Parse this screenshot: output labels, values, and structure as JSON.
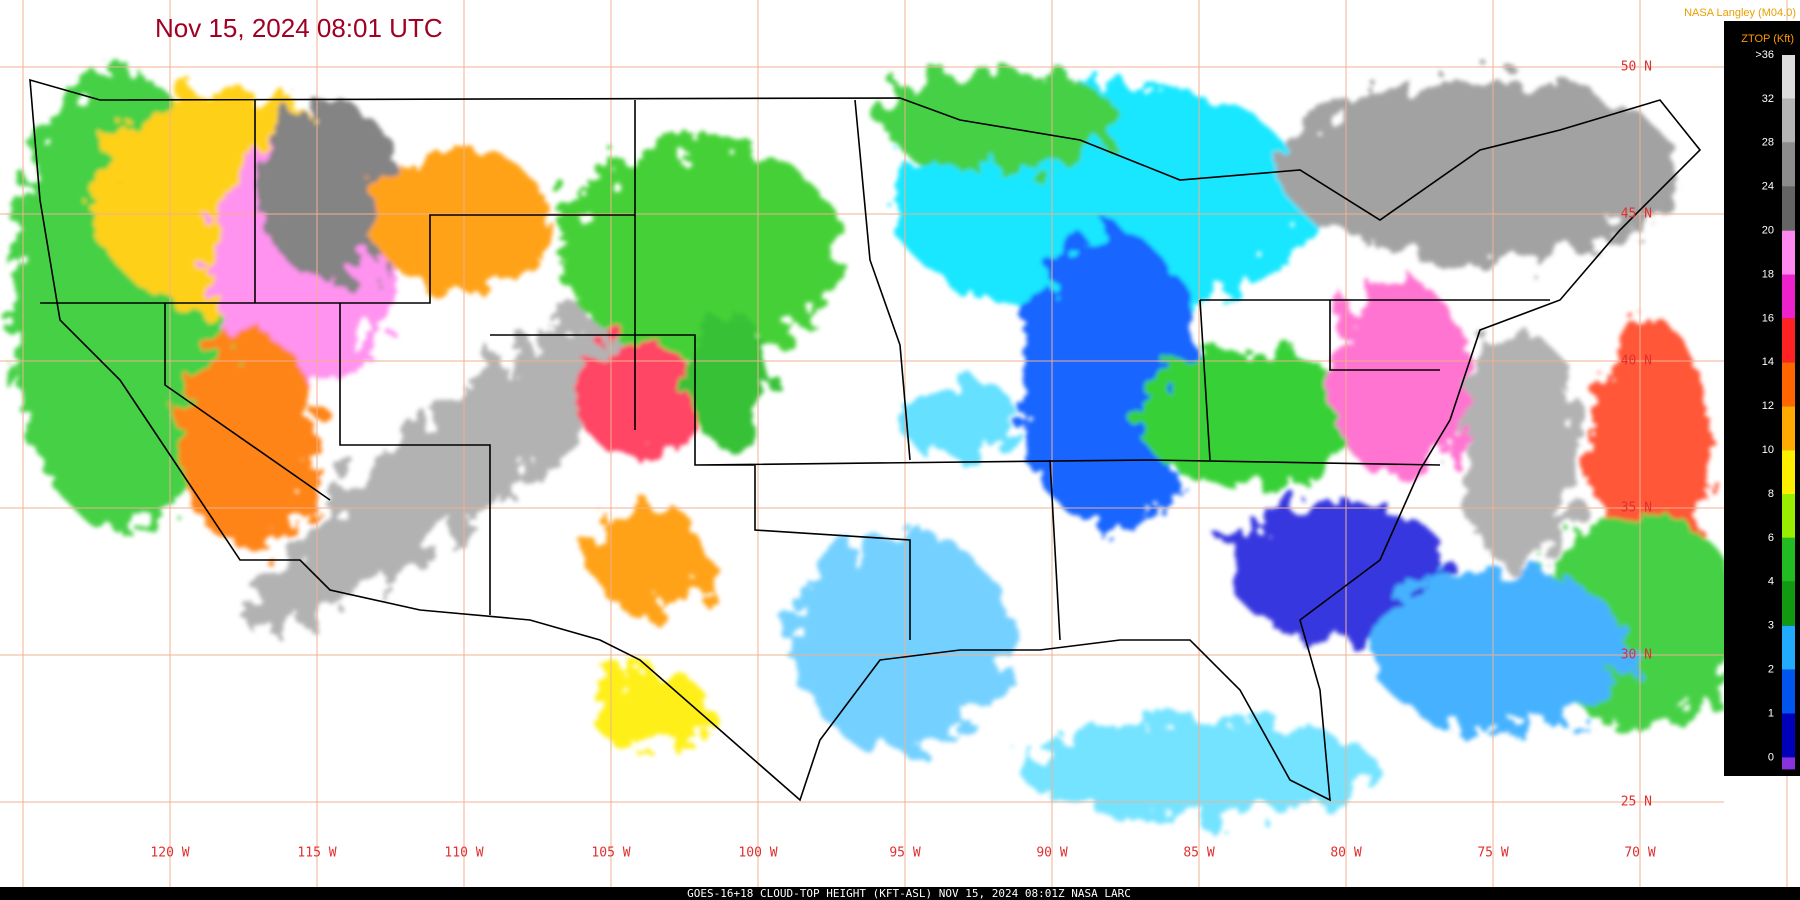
{
  "header": {
    "title": "Nov 15, 2024 08:01 UTC",
    "credit": "NASA Langley (M04.0)"
  },
  "legend": {
    "title": "ZTOP (Kft)",
    "items": [
      {
        "label": ">36",
        "color": "#dcdcdc"
      },
      {
        "label": "32",
        "color": "#b4b4b4"
      },
      {
        "label": "28",
        "color": "#8c8c8c"
      },
      {
        "label": "24",
        "color": "#646464"
      },
      {
        "label": "20",
        "color": "#ff88ee"
      },
      {
        "label": "18",
        "color": "#ee22cc"
      },
      {
        "label": "16",
        "color": "#ff2222"
      },
      {
        "label": "14",
        "color": "#ff6600"
      },
      {
        "label": "12",
        "color": "#ffaa00"
      },
      {
        "label": "10",
        "color": "#ffee00"
      },
      {
        "label": "8",
        "color": "#99ee00"
      },
      {
        "label": "6",
        "color": "#22bb22"
      },
      {
        "label": "4",
        "color": "#119911"
      },
      {
        "label": "3",
        "color": "#22aaff"
      },
      {
        "label": "2",
        "color": "#0055ee"
      },
      {
        "label": "1",
        "color": "#0000bb"
      },
      {
        "label": "0",
        "color": "#8833dd"
      }
    ]
  },
  "grid": {
    "longitudes": [
      "120 W",
      "115 W",
      "110 W",
      "105 W",
      "100 W",
      "95 W",
      "90 W",
      "85 W",
      "80 W",
      "75 W",
      "70 W"
    ],
    "latitudes": [
      "50 N",
      "45 N",
      "40 N",
      "35 N",
      "30 N",
      "25 N"
    ]
  },
  "footer": {
    "caption": "GOES-16+18  CLOUD-TOP HEIGHT (KFT-ASL)   NOV 15, 2024 08:01Z   NASA LARC"
  }
}
